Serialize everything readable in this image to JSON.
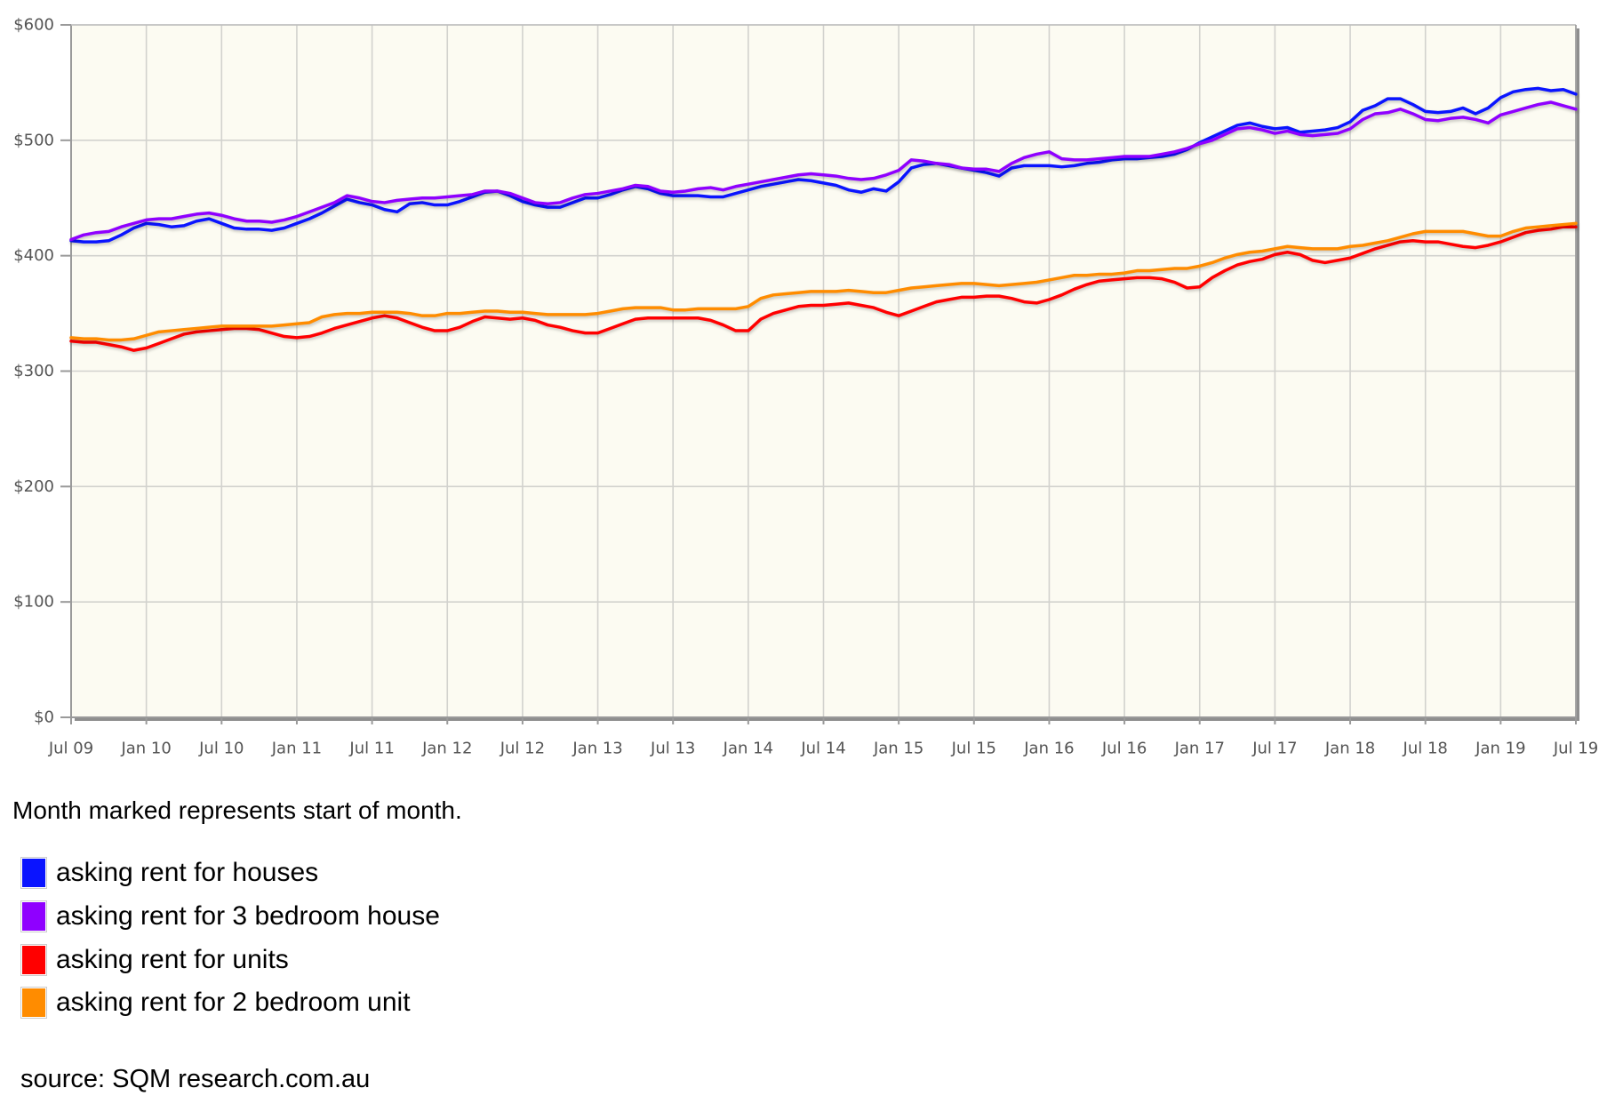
{
  "chart_data": {
    "type": "line",
    "grid": true,
    "legend": "below",
    "plot_background": "#fcfbf2",
    "ylim": [
      0,
      600
    ],
    "y_ticks": [
      {
        "value": 0,
        "label": "$0"
      },
      {
        "value": 100,
        "label": "$100"
      },
      {
        "value": 200,
        "label": "$200"
      },
      {
        "value": 300,
        "label": "$300"
      },
      {
        "value": 400,
        "label": "$400"
      },
      {
        "value": 500,
        "label": "$500"
      },
      {
        "value": 600,
        "label": "$600"
      }
    ],
    "x_ticks": [
      "Jul 09",
      "Jan 10",
      "Jul 10",
      "Jan 11",
      "Jul 11",
      "Jan 12",
      "Jul 12",
      "Jan 13",
      "Jul 13",
      "Jan 14",
      "Jul 14",
      "Jan 15",
      "Jul 15",
      "Jan 16",
      "Jul 16",
      "Jan 17",
      "Jul 17",
      "Jan 18",
      "Jul 18",
      "Jan 19",
      "Jul 19"
    ],
    "x": [
      "Jul 09",
      "Aug 09",
      "Sep 09",
      "Oct 09",
      "Nov 09",
      "Dec 09",
      "Jan 10",
      "Feb 10",
      "Mar 10",
      "Apr 10",
      "May 10",
      "Jun 10",
      "Jul 10",
      "Aug 10",
      "Sep 10",
      "Oct 10",
      "Nov 10",
      "Dec 10",
      "Jan 11",
      "Feb 11",
      "Mar 11",
      "Apr 11",
      "May 11",
      "Jun 11",
      "Jul 11",
      "Aug 11",
      "Sep 11",
      "Oct 11",
      "Nov 11",
      "Dec 11",
      "Jan 12",
      "Feb 12",
      "Mar 12",
      "Apr 12",
      "May 12",
      "Jun 12",
      "Jul 12",
      "Aug 12",
      "Sep 12",
      "Oct 12",
      "Nov 12",
      "Dec 12",
      "Jan 13",
      "Feb 13",
      "Mar 13",
      "Apr 13",
      "May 13",
      "Jun 13",
      "Jul 13",
      "Aug 13",
      "Sep 13",
      "Oct 13",
      "Nov 13",
      "Dec 13",
      "Jan 14",
      "Feb 14",
      "Mar 14",
      "Apr 14",
      "May 14",
      "Jun 14",
      "Jul 14",
      "Aug 14",
      "Sep 14",
      "Oct 14",
      "Nov 14",
      "Dec 14",
      "Jan 15",
      "Feb 15",
      "Mar 15",
      "Apr 15",
      "May 15",
      "Jun 15",
      "Jul 15",
      "Aug 15",
      "Sep 15",
      "Oct 15",
      "Nov 15",
      "Dec 15",
      "Jan 16",
      "Feb 16",
      "Mar 16",
      "Apr 16",
      "May 16",
      "Jun 16",
      "Jul 16",
      "Aug 16",
      "Sep 16",
      "Oct 16",
      "Nov 16",
      "Dec 16",
      "Jan 17",
      "Feb 17",
      "Mar 17",
      "Apr 17",
      "May 17",
      "Jun 17",
      "Jul 17",
      "Aug 17",
      "Sep 17",
      "Oct 17",
      "Nov 17",
      "Dec 17",
      "Jan 18",
      "Feb 18",
      "Mar 18",
      "Apr 18",
      "May 18",
      "Jun 18",
      "Jul 18",
      "Aug 18",
      "Sep 18",
      "Oct 18",
      "Nov 18",
      "Dec 18",
      "Jan 19",
      "Feb 19",
      "Mar 19",
      "Apr 19",
      "May 19",
      "Jun 19",
      "Jul 19"
    ],
    "series": [
      {
        "name": "asking rent for houses",
        "color": "#0a14ff",
        "values": [
          413,
          412,
          412,
          413,
          418,
          424,
          428,
          427,
          425,
          426,
          430,
          432,
          428,
          424,
          423,
          423,
          422,
          424,
          428,
          432,
          437,
          443,
          449,
          446,
          444,
          440,
          438,
          445,
          446,
          444,
          444,
          447,
          451,
          455,
          456,
          452,
          447,
          444,
          442,
          442,
          446,
          450,
          450,
          453,
          457,
          460,
          458,
          454,
          452,
          452,
          452,
          451,
          451,
          454,
          457,
          460,
          462,
          464,
          466,
          465,
          463,
          461,
          457,
          455,
          458,
          456,
          464,
          476,
          479,
          480,
          478,
          476,
          474,
          472,
          469,
          476,
          478,
          478,
          478,
          477,
          478,
          480,
          481,
          483,
          484,
          484,
          485,
          486,
          488,
          492,
          498,
          503,
          508,
          513,
          515,
          512,
          510,
          511,
          507,
          508,
          509,
          511,
          516,
          526,
          530,
          536,
          536,
          531,
          525,
          524,
          525,
          528,
          523,
          528,
          537,
          542,
          544,
          545,
          543,
          544,
          540
        ]
      },
      {
        "name": "asking rent for 3 bedroom house",
        "color": "#8f00ff",
        "values": [
          414,
          418,
          420,
          421,
          425,
          428,
          431,
          432,
          432,
          434,
          436,
          437,
          435,
          432,
          430,
          430,
          429,
          431,
          434,
          438,
          442,
          446,
          452,
          450,
          447,
          446,
          448,
          449,
          450,
          450,
          451,
          452,
          453,
          456,
          456,
          454,
          450,
          446,
          445,
          446,
          450,
          453,
          454,
          456,
          458,
          461,
          460,
          456,
          455,
          456,
          458,
          459,
          457,
          460,
          462,
          464,
          466,
          468,
          470,
          471,
          470,
          469,
          467,
          466,
          467,
          470,
          474,
          483,
          482,
          480,
          479,
          476,
          475,
          475,
          473,
          480,
          485,
          488,
          490,
          484,
          483,
          483,
          484,
          485,
          486,
          486,
          486,
          488,
          490,
          493,
          497,
          500,
          505,
          510,
          511,
          509,
          506,
          508,
          505,
          504,
          505,
          506,
          510,
          518,
          523,
          524,
          527,
          523,
          518,
          517,
          519,
          520,
          518,
          515,
          522,
          525,
          528,
          531,
          533,
          530,
          527
        ]
      },
      {
        "name": "asking rent for units",
        "color": "#ff0000",
        "values": [
          326,
          325,
          325,
          323,
          321,
          318,
          320,
          324,
          328,
          332,
          334,
          335,
          336,
          337,
          337,
          336,
          333,
          330,
          329,
          330,
          333,
          337,
          340,
          343,
          346,
          348,
          346,
          342,
          338,
          335,
          335,
          338,
          343,
          347,
          346,
          345,
          346,
          344,
          340,
          338,
          335,
          333,
          333,
          337,
          341,
          345,
          346,
          346,
          346,
          346,
          346,
          344,
          340,
          335,
          335,
          345,
          350,
          353,
          356,
          357,
          357,
          358,
          359,
          357,
          355,
          351,
          348,
          352,
          356,
          360,
          362,
          364,
          364,
          365,
          365,
          363,
          360,
          359,
          362,
          366,
          371,
          375,
          378,
          379,
          380,
          381,
          381,
          380,
          377,
          372,
          373,
          381,
          387,
          392,
          395,
          397,
          401,
          403,
          401,
          396,
          394,
          396,
          398,
          402,
          406,
          409,
          412,
          413,
          412,
          412,
          410,
          408,
          407,
          409,
          412,
          416,
          420,
          422,
          423,
          425,
          425
        ]
      },
      {
        "name": "asking rent for 2 bedroom unit",
        "color": "#ff8c00",
        "values": [
          329,
          328,
          328,
          327,
          327,
          328,
          331,
          334,
          335,
          336,
          337,
          338,
          339,
          339,
          339,
          339,
          339,
          340,
          341,
          342,
          347,
          349,
          350,
          350,
          351,
          351,
          351,
          350,
          348,
          348,
          350,
          350,
          351,
          352,
          352,
          351,
          351,
          350,
          349,
          349,
          349,
          349,
          350,
          352,
          354,
          355,
          355,
          355,
          353,
          353,
          354,
          354,
          354,
          354,
          356,
          363,
          366,
          367,
          368,
          369,
          369,
          369,
          370,
          369,
          368,
          368,
          370,
          372,
          373,
          374,
          375,
          376,
          376,
          375,
          374,
          375,
          376,
          377,
          379,
          381,
          383,
          383,
          384,
          384,
          385,
          387,
          387,
          388,
          389,
          389,
          391,
          394,
          398,
          401,
          403,
          404,
          406,
          408,
          407,
          406,
          406,
          406,
          408,
          409,
          411,
          413,
          416,
          419,
          421,
          421,
          421,
          421,
          419,
          417,
          417,
          421,
          424,
          425,
          426,
          427,
          428
        ]
      }
    ]
  },
  "note": "Month marked represents start of month.",
  "source": "source: SQM research.com.au"
}
